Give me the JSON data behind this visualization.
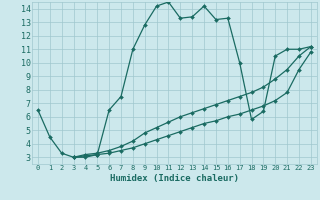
{
  "xlabel": "Humidex (Indice chaleur)",
  "bg_color": "#cce8ec",
  "line_color": "#1a6b62",
  "grid_color": "#a0c8ce",
  "xlim": [
    -0.5,
    23.5
  ],
  "ylim": [
    2.5,
    14.5
  ],
  "xticks": [
    0,
    1,
    2,
    3,
    4,
    5,
    6,
    7,
    8,
    9,
    10,
    11,
    12,
    13,
    14,
    15,
    16,
    17,
    18,
    19,
    20,
    21,
    22,
    23
  ],
  "yticks": [
    3,
    4,
    5,
    6,
    7,
    8,
    9,
    10,
    11,
    12,
    13,
    14
  ],
  "series": [
    {
      "x": [
        0,
        1,
        2,
        3,
        4,
        5,
        6,
        7,
        8,
        9,
        10,
        11,
        12,
        13,
        14,
        15,
        16,
        17,
        18,
        19,
        20,
        21,
        22,
        23
      ],
      "y": [
        6.5,
        4.5,
        3.3,
        3.0,
        3.0,
        3.2,
        6.5,
        7.5,
        11.0,
        12.8,
        14.2,
        14.5,
        13.3,
        13.4,
        14.2,
        13.2,
        13.3,
        10.0,
        5.8,
        6.4,
        10.5,
        11.0,
        11.0,
        11.2
      ]
    },
    {
      "x": [
        3,
        4,
        5,
        6,
        7,
        8,
        9,
        10,
        11,
        12,
        13,
        14,
        15,
        16,
        17,
        18,
        19,
        20,
        21,
        22,
        23
      ],
      "y": [
        3.0,
        3.2,
        3.3,
        3.5,
        3.8,
        4.2,
        4.8,
        5.2,
        5.6,
        6.0,
        6.3,
        6.6,
        6.9,
        7.2,
        7.5,
        7.8,
        8.2,
        8.8,
        9.5,
        10.5,
        11.2
      ]
    },
    {
      "x": [
        3,
        4,
        5,
        6,
        7,
        8,
        9,
        10,
        11,
        12,
        13,
        14,
        15,
        16,
        17,
        18,
        19,
        20,
        21,
        22,
        23
      ],
      "y": [
        3.0,
        3.1,
        3.2,
        3.3,
        3.5,
        3.7,
        4.0,
        4.3,
        4.6,
        4.9,
        5.2,
        5.5,
        5.7,
        6.0,
        6.2,
        6.5,
        6.8,
        7.2,
        7.8,
        9.5,
        10.8
      ]
    }
  ]
}
